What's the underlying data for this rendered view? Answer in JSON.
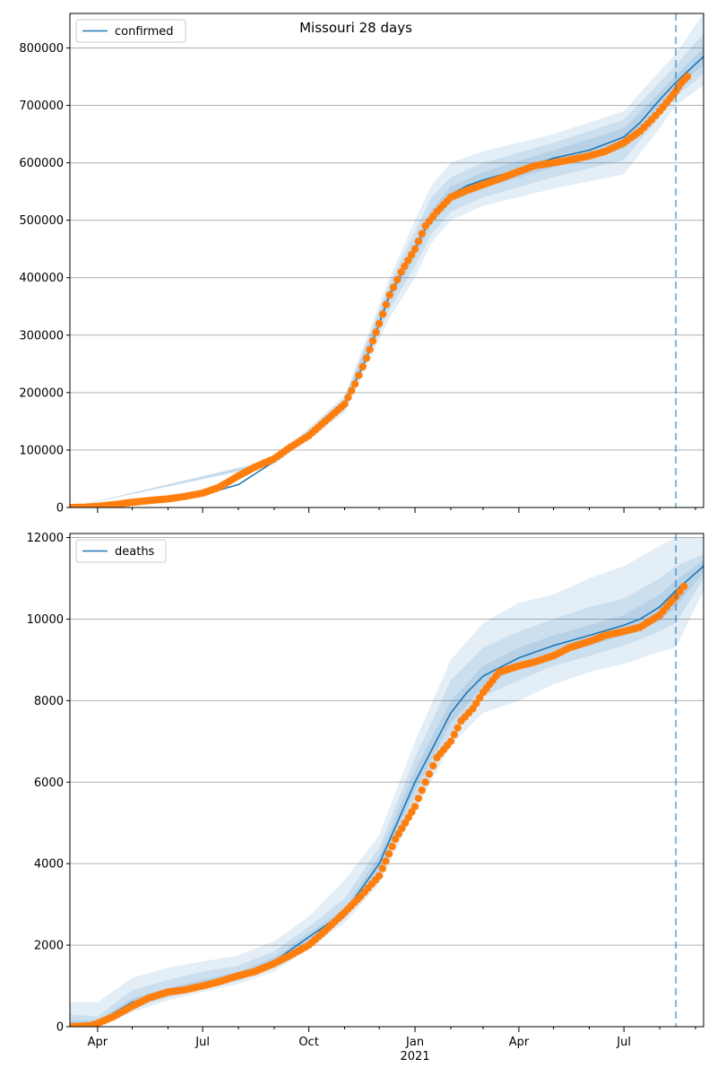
{
  "figure": {
    "title": "Missouri 28 days"
  },
  "chart_data": [
    {
      "type": "line",
      "legend": {
        "label": "confirmed",
        "placement": "top-left"
      },
      "grid": {
        "y": true,
        "x": false
      },
      "x_axis": {
        "type": "date",
        "range": [
          "2020-03-08",
          "2021-09-08"
        ],
        "ticks_shown_on_lower_panel_only": true
      },
      "ylim": [
        0,
        860000
      ],
      "yticks": [
        0,
        100000,
        200000,
        300000,
        400000,
        500000,
        600000,
        700000,
        800000
      ],
      "ytick_labels": [
        "0",
        "100000",
        "200000",
        "300000",
        "400000",
        "500000",
        "600000",
        "700000",
        "800000"
      ],
      "forecast_date": "2021-08-15",
      "colors": {
        "model": "#1f77b4",
        "observed": "#ff7f0e"
      },
      "model_line": {
        "x": [
          "2020-03-08",
          "2020-05-01",
          "2020-06-01",
          "2020-07-01",
          "2020-08-01",
          "2020-09-01",
          "2020-10-01",
          "2020-11-01",
          "2020-11-20",
          "2020-12-10",
          "2021-01-01",
          "2021-01-15",
          "2021-02-01",
          "2021-02-15",
          "2021-03-01",
          "2021-04-01",
          "2021-05-01",
          "2021-06-01",
          "2021-07-01",
          "2021-07-15",
          "2021-08-01",
          "2021-08-15",
          "2021-09-08"
        ],
        "y": [
          0,
          10000,
          15000,
          22000,
          40000,
          80000,
          125000,
          180000,
          260000,
          370000,
          450000,
          505000,
          545000,
          560000,
          570000,
          588000,
          608000,
          622000,
          645000,
          670000,
          710000,
          740000,
          785000
        ]
      },
      "bands": [
        {
          "label": "outer",
          "x": [
            "2020-03-08",
            "2020-09-01",
            "2020-11-01",
            "2020-12-10",
            "2021-01-01",
            "2021-01-15",
            "2021-02-01",
            "2021-03-01",
            "2021-05-01",
            "2021-07-01",
            "2021-08-01",
            "2021-08-15",
            "2021-09-08"
          ],
          "low": [
            0,
            75000,
            165000,
            330000,
            400000,
            460000,
            500000,
            525000,
            555000,
            580000,
            660000,
            700000,
            735000
          ],
          "high": [
            0,
            85000,
            195000,
            400000,
            500000,
            560000,
            600000,
            620000,
            650000,
            690000,
            760000,
            790000,
            860000
          ]
        },
        {
          "label": "middle",
          "x": [
            "2020-03-08",
            "2020-09-01",
            "2020-11-01",
            "2020-12-10",
            "2021-01-01",
            "2021-01-15",
            "2021-02-01",
            "2021-03-01",
            "2021-05-01",
            "2021-07-01",
            "2021-08-01",
            "2021-08-15",
            "2021-09-08"
          ],
          "low": [
            0,
            77000,
            170000,
            345000,
            420000,
            475000,
            515000,
            540000,
            575000,
            605000,
            680000,
            715000,
            755000
          ],
          "high": [
            0,
            83000,
            190000,
            390000,
            480000,
            540000,
            575000,
            600000,
            635000,
            675000,
            740000,
            770000,
            825000
          ]
        },
        {
          "label": "inner",
          "x": [
            "2020-03-08",
            "2020-09-01",
            "2020-11-01",
            "2020-12-10",
            "2021-01-01",
            "2021-01-15",
            "2021-02-01",
            "2021-03-01",
            "2021-05-01",
            "2021-07-01",
            "2021-08-01",
            "2021-08-15",
            "2021-09-08"
          ],
          "low": [
            0,
            79000,
            175000,
            360000,
            438000,
            492000,
            532000,
            556000,
            592000,
            625000,
            700000,
            730000,
            770000
          ],
          "high": [
            0,
            81000,
            185000,
            380000,
            462000,
            518000,
            558000,
            584000,
            622000,
            660000,
            722000,
            752000,
            800000
          ]
        }
      ],
      "observed": {
        "x": [
          "2020-03-08",
          "2020-03-20",
          "2020-04-01",
          "2020-04-15",
          "2020-05-01",
          "2020-05-15",
          "2020-06-01",
          "2020-06-15",
          "2020-07-01",
          "2020-07-15",
          "2020-08-01",
          "2020-08-15",
          "2020-09-01",
          "2020-09-15",
          "2020-10-01",
          "2020-10-15",
          "2020-11-01",
          "2020-11-10",
          "2020-11-20",
          "2020-12-01",
          "2020-12-10",
          "2020-12-20",
          "2021-01-01",
          "2021-01-10",
          "2021-01-20",
          "2021-02-01",
          "2021-02-15",
          "2021-03-01",
          "2021-03-15",
          "2021-04-01",
          "2021-04-15",
          "2021-05-01",
          "2021-05-15",
          "2021-06-01",
          "2021-06-15",
          "2021-07-01",
          "2021-07-15",
          "2021-07-25",
          "2021-08-01",
          "2021-08-10",
          "2021-08-15",
          "2021-08-20",
          "2021-08-25"
        ],
        "y": [
          0,
          500,
          2000,
          5000,
          9000,
          12000,
          15000,
          19000,
          25000,
          35000,
          55000,
          70000,
          85000,
          105000,
          125000,
          150000,
          180000,
          215000,
          260000,
          320000,
          370000,
          410000,
          450000,
          490000,
          515000,
          540000,
          552000,
          562000,
          572000,
          585000,
          595000,
          600000,
          605000,
          612000,
          620000,
          635000,
          655000,
          675000,
          690000,
          712000,
          725000,
          740000,
          750000
        ]
      }
    },
    {
      "type": "line",
      "legend": {
        "label": "deaths",
        "placement": "top-left"
      },
      "grid": {
        "y": true,
        "x": false
      },
      "x_axis": {
        "type": "date",
        "range": [
          "2020-03-08",
          "2021-09-08"
        ],
        "major_ticks": [
          "2020-04-01",
          "2020-07-01",
          "2020-10-01",
          "2021-01-01",
          "2021-04-01",
          "2021-07-01"
        ],
        "major_tick_labels": [
          "Apr",
          "Jul",
          "Oct",
          "Jan",
          "Apr",
          "Jul"
        ],
        "year_label": "2021"
      },
      "ylim": [
        0,
        12100
      ],
      "yticks": [
        0,
        2000,
        4000,
        6000,
        8000,
        10000,
        12000
      ],
      "ytick_labels": [
        "0",
        "2000",
        "4000",
        "6000",
        "8000",
        "10000",
        "12000"
      ],
      "forecast_date": "2021-08-15",
      "colors": {
        "model": "#1f77b4",
        "observed": "#ff7f0e"
      },
      "model_line": {
        "x": [
          "2020-03-08",
          "2020-04-01",
          "2020-05-01",
          "2020-06-01",
          "2020-07-01",
          "2020-08-01",
          "2020-09-01",
          "2020-10-01",
          "2020-11-01",
          "2020-12-01",
          "2021-01-01",
          "2021-02-01",
          "2021-02-15",
          "2021-03-01",
          "2021-04-01",
          "2021-05-01",
          "2021-06-01",
          "2021-07-01",
          "2021-07-15",
          "2021-08-01",
          "2021-08-15",
          "2021-09-08"
        ],
        "y": [
          0,
          100,
          600,
          850,
          1050,
          1250,
          1600,
          2200,
          2800,
          4000,
          6000,
          7700,
          8200,
          8600,
          9050,
          9350,
          9600,
          9850,
          10000,
          10300,
          10700,
          11300
        ]
      },
      "bands": [
        {
          "label": "outer",
          "x": [
            "2020-03-08",
            "2020-04-01",
            "2020-05-01",
            "2020-06-01",
            "2020-07-01",
            "2020-08-01",
            "2020-09-01",
            "2020-10-01",
            "2020-11-01",
            "2020-12-01",
            "2021-01-01",
            "2021-02-01",
            "2021-03-01",
            "2021-04-01",
            "2021-05-01",
            "2021-06-01",
            "2021-07-01",
            "2021-08-01",
            "2021-08-15",
            "2021-09-08"
          ],
          "low": [
            0,
            0,
            350,
            650,
            850,
            1050,
            1350,
            1900,
            2550,
            3500,
            5300,
            6900,
            7700,
            8000,
            8400,
            8700,
            8900,
            9200,
            9300,
            10700
          ],
          "high": [
            600,
            600,
            1200,
            1450,
            1600,
            1750,
            2100,
            2700,
            3600,
            4700,
            7000,
            9000,
            9900,
            10400,
            10600,
            11000,
            11300,
            11800,
            12000,
            12000
          ]
        },
        {
          "label": "middle",
          "x": [
            "2020-03-08",
            "2020-04-01",
            "2020-05-01",
            "2020-06-01",
            "2020-07-01",
            "2020-08-01",
            "2020-09-01",
            "2020-10-01",
            "2020-11-01",
            "2020-12-01",
            "2021-01-01",
            "2021-02-01",
            "2021-03-01",
            "2021-04-01",
            "2021-05-01",
            "2021-06-01",
            "2021-07-01",
            "2021-08-01",
            "2021-08-15",
            "2021-09-08"
          ],
          "low": [
            0,
            20,
            450,
            720,
            930,
            1130,
            1450,
            2000,
            2650,
            3700,
            5600,
            7200,
            8100,
            8500,
            8850,
            9100,
            9350,
            9700,
            9900,
            11000
          ],
          "high": [
            300,
            250,
            900,
            1150,
            1350,
            1500,
            1850,
            2450,
            3150,
            4400,
            6600,
            8500,
            9300,
            9700,
            10000,
            10300,
            10500,
            11000,
            11300,
            11600
          ]
        },
        {
          "label": "inner",
          "x": [
            "2020-03-08",
            "2020-04-01",
            "2020-05-01",
            "2020-06-01",
            "2020-07-01",
            "2020-08-01",
            "2020-09-01",
            "2020-10-01",
            "2020-11-01",
            "2020-12-01",
            "2021-01-01",
            "2021-02-01",
            "2021-03-01",
            "2021-04-01",
            "2021-05-01",
            "2021-06-01",
            "2021-07-01",
            "2021-08-01",
            "2021-08-15",
            "2021-09-08"
          ],
          "low": [
            0,
            50,
            520,
            780,
            980,
            1180,
            1520,
            2100,
            2720,
            3850,
            5800,
            7450,
            8350,
            8800,
            9100,
            9350,
            9600,
            9950,
            10300,
            11150
          ],
          "high": [
            150,
            150,
            700,
            950,
            1150,
            1350,
            1700,
            2300,
            2900,
            4200,
            6300,
            8000,
            8850,
            9300,
            9600,
            9850,
            10100,
            10600,
            10950,
            11450
          ]
        }
      ],
      "observed": {
        "x": [
          "2020-03-08",
          "2020-03-25",
          "2020-04-01",
          "2020-04-15",
          "2020-05-01",
          "2020-05-15",
          "2020-06-01",
          "2020-06-15",
          "2020-07-01",
          "2020-07-15",
          "2020-08-01",
          "2020-08-15",
          "2020-09-01",
          "2020-09-15",
          "2020-10-01",
          "2020-10-15",
          "2020-11-01",
          "2020-11-15",
          "2020-12-01",
          "2020-12-15",
          "2021-01-01",
          "2021-01-10",
          "2021-01-20",
          "2021-02-01",
          "2021-02-10",
          "2021-02-20",
          "2021-03-01",
          "2021-03-15",
          "2021-04-01",
          "2021-04-15",
          "2021-05-01",
          "2021-05-15",
          "2021-06-01",
          "2021-06-15",
          "2021-07-01",
          "2021-07-15",
          "2021-08-01",
          "2021-08-10",
          "2021-08-15",
          "2021-08-22"
        ],
        "y": [
          0,
          20,
          80,
          250,
          500,
          700,
          850,
          900,
          1000,
          1100,
          1250,
          1350,
          1550,
          1750,
          2000,
          2350,
          2800,
          3200,
          3700,
          4600,
          5400,
          6000,
          6600,
          7000,
          7500,
          7800,
          8200,
          8700,
          8850,
          8950,
          9100,
          9300,
          9450,
          9600,
          9700,
          9800,
          10100,
          10400,
          10550,
          10800
        ]
      }
    }
  ]
}
